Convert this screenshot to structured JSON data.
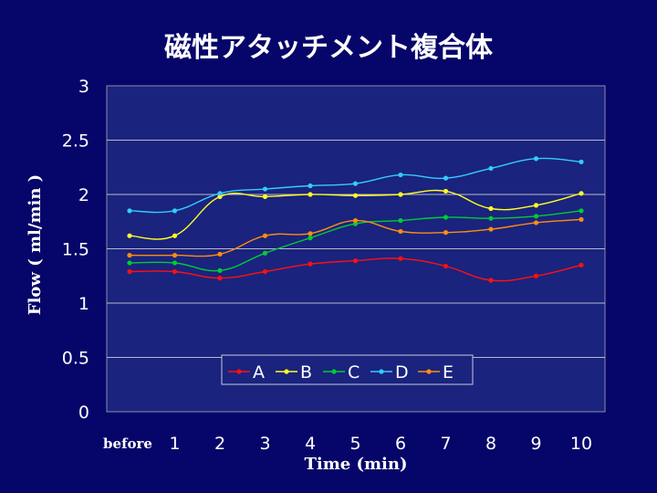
{
  "chart_data": {
    "type": "line",
    "title": "磁性アタッチメント複合体",
    "xlabel": "Time (min)",
    "ylabel": "Flow ( ml/min )",
    "categories": [
      "before",
      "1",
      "2",
      "3",
      "4",
      "5",
      "6",
      "7",
      "8",
      "9",
      "10"
    ],
    "yticks": [
      "0",
      "0.5",
      "1",
      "1.5",
      "2",
      "2.5",
      "3"
    ],
    "ylim": [
      0,
      3
    ],
    "grid": true,
    "legend_position": "bottom-center",
    "background_color": "#06066a",
    "plot_color": "#1a237e",
    "series": [
      {
        "name": "A",
        "color": "#ff1010",
        "values": [
          1.29,
          1.29,
          1.23,
          1.29,
          1.36,
          1.39,
          1.41,
          1.34,
          1.21,
          1.25,
          1.35
        ]
      },
      {
        "name": "B",
        "color": "#ffff20",
        "values": [
          1.62,
          1.62,
          1.98,
          1.98,
          2.0,
          1.99,
          2.0,
          2.03,
          1.87,
          1.9,
          2.01
        ]
      },
      {
        "name": "C",
        "color": "#00cc33",
        "values": [
          1.37,
          1.37,
          1.3,
          1.46,
          1.6,
          1.73,
          1.76,
          1.79,
          1.78,
          1.8,
          1.85
        ]
      },
      {
        "name": "D",
        "color": "#33ccff",
        "values": [
          1.85,
          1.85,
          2.01,
          2.05,
          2.08,
          2.1,
          2.18,
          2.15,
          2.24,
          2.33,
          2.3
        ]
      },
      {
        "name": "E",
        "color": "#ff8c10",
        "values": [
          1.44,
          1.44,
          1.45,
          1.62,
          1.64,
          1.76,
          1.66,
          1.65,
          1.68,
          1.74,
          1.77
        ]
      }
    ]
  }
}
